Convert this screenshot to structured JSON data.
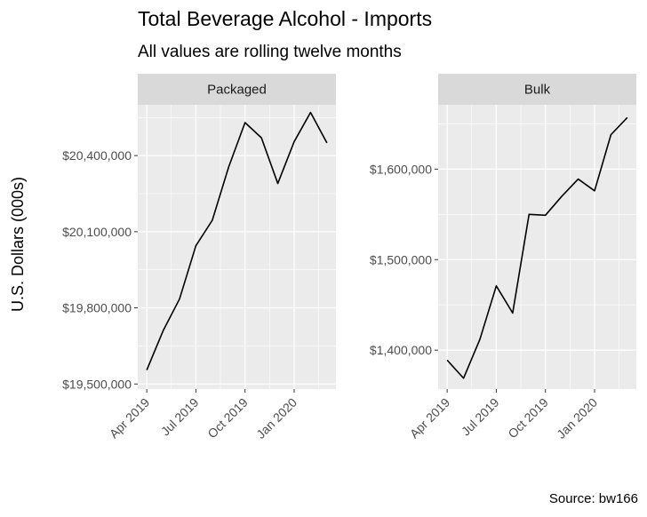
{
  "chart_data": {
    "type": "line",
    "title": "Total Beverage Alcohol - Imports",
    "subtitle": "All values are rolling twelve months",
    "ylabel": "U.S. Dollars (000s)",
    "caption": "Source: bw166",
    "line_color": "#000000",
    "x": [
      "2019-04",
      "2019-05",
      "2019-06",
      "2019-07",
      "2019-08",
      "2019-09",
      "2019-10",
      "2019-11",
      "2019-12",
      "2020-01",
      "2020-02",
      "2020-03"
    ],
    "x_ticks": [
      {
        "value": "2019-04",
        "label": "Apr 2019"
      },
      {
        "value": "2019-07",
        "label": "Jul 2019"
      },
      {
        "value": "2019-10",
        "label": "Oct 2019"
      },
      {
        "value": "2020-01",
        "label": "Jan 2020"
      }
    ],
    "panels": [
      {
        "name": "Packaged",
        "values": [
          19555000,
          19710000,
          19835000,
          20045000,
          20145000,
          20355000,
          20530000,
          20470000,
          20290000,
          20455000,
          20570000,
          20450000
        ],
        "ylim": [
          19480000,
          20600000
        ],
        "y_ticks": [
          {
            "value": 19500000,
            "label": "$19,500,000"
          },
          {
            "value": 19800000,
            "label": "$19,800,000"
          },
          {
            "value": 20100000,
            "label": "$20,100,000"
          },
          {
            "value": 20400000,
            "label": "$20,400,000"
          }
        ]
      },
      {
        "name": "Bulk",
        "values": [
          1389000,
          1369000,
          1412000,
          1471000,
          1441000,
          1550000,
          1549000,
          1570000,
          1589000,
          1576000,
          1638000,
          1657000
        ],
        "ylim": [
          1357000,
          1671000
        ],
        "y_ticks": [
          {
            "value": 1400000,
            "label": "$1,400,000"
          },
          {
            "value": 1500000,
            "label": "$1,500,000"
          },
          {
            "value": 1600000,
            "label": "$1,600,000"
          }
        ]
      }
    ]
  }
}
